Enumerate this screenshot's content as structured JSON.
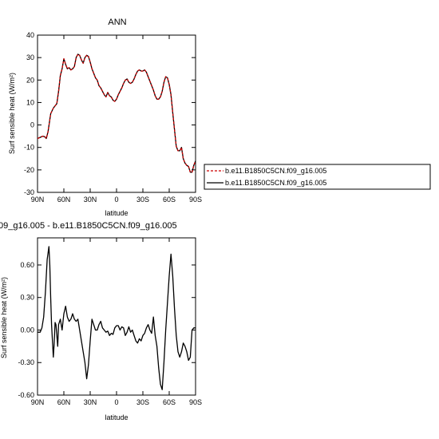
{
  "chart_data": [
    {
      "type": "line",
      "title": "ANN",
      "xlabel": "latitude",
      "ylabel": "Surf sensible heat (W/m²)",
      "xlim": [
        90,
        -90
      ],
      "ylim": [
        -30,
        40
      ],
      "x_ticks": [
        90,
        60,
        30,
        0,
        -30,
        -60,
        -90
      ],
      "x_tick_labels": [
        "90N",
        "60N",
        "30N",
        "0",
        "30S",
        "60S",
        "90S"
      ],
      "y_ticks": [
        -30,
        -20,
        -10,
        0,
        10,
        20,
        30,
        40
      ],
      "y_tick_labels": [
        "-30",
        "-20",
        "-10",
        "0",
        "10",
        "20",
        "30",
        "40"
      ],
      "x": [
        90,
        87,
        84,
        82,
        80,
        78,
        75,
        72,
        70,
        68,
        66,
        64,
        62,
        60,
        58,
        56,
        54,
        52,
        50,
        48,
        46,
        44,
        42,
        40,
        38,
        36,
        34,
        32,
        30,
        28,
        26,
        24,
        22,
        20,
        18,
        16,
        14,
        12,
        10,
        8,
        6,
        4,
        2,
        0,
        -2,
        -4,
        -6,
        -8,
        -10,
        -12,
        -14,
        -16,
        -18,
        -20,
        -22,
        -24,
        -26,
        -28,
        -30,
        -32,
        -34,
        -36,
        -38,
        -40,
        -42,
        -44,
        -46,
        -48,
        -50,
        -52,
        -54,
        -56,
        -58,
        -60,
        -62,
        -64,
        -66,
        -68,
        -70,
        -72,
        -74,
        -76,
        -78,
        -80,
        -82,
        -84,
        -86,
        -88,
        -90
      ],
      "series": [
        {
          "name": "b.e11.B1850C5CN.f09_g16.005",
          "color": "#cc0000",
          "dash": "dashed",
          "values": [
            -6,
            -5.5,
            -5,
            -5,
            -6,
            -3,
            5,
            7.5,
            8.5,
            9.5,
            15,
            22,
            25,
            29.5,
            27,
            25,
            25.5,
            24.5,
            25,
            26,
            30,
            31.5,
            31,
            29,
            27.5,
            30,
            31,
            30.5,
            28,
            25,
            23,
            21,
            20,
            17.5,
            16.5,
            15,
            13.5,
            12.5,
            14.5,
            13,
            12.5,
            11,
            10.5,
            11.5,
            13.5,
            15,
            16.5,
            18.5,
            20,
            20.5,
            19,
            18.5,
            19,
            20.5,
            22.5,
            24,
            24.5,
            24,
            24,
            24.5,
            23.5,
            21.5,
            19.5,
            17.5,
            15.5,
            13,
            11.5,
            11.5,
            12.5,
            15,
            19,
            21.5,
            21,
            18,
            13.5,
            5.5,
            -2,
            -9.5,
            -11.5,
            -11.5,
            -10,
            -15,
            -17,
            -18,
            -18.5,
            -21,
            -21,
            -18,
            -16
          ]
        },
        {
          "name": "b.e11.B1850C5CN.f09_g16.005",
          "color": "#000000",
          "dash": "solid",
          "values": [
            -6,
            -5.5,
            -5,
            -5.2,
            -6,
            -3,
            5,
            7.5,
            8.5,
            9.5,
            15,
            22,
            25,
            29.5,
            27,
            25,
            25.5,
            24.5,
            25,
            26,
            30,
            31.5,
            31,
            29,
            27.5,
            30,
            31,
            30.5,
            28,
            25,
            23,
            21,
            20,
            17.5,
            16.5,
            15,
            13.5,
            12.5,
            14.5,
            13,
            12.5,
            11,
            10.5,
            11.5,
            13.5,
            15,
            16.5,
            18.5,
            20,
            20.5,
            19,
            18.5,
            19,
            20.5,
            22.5,
            24,
            24.5,
            24,
            24,
            24.5,
            23.5,
            21.5,
            19.5,
            17.5,
            15.5,
            13,
            11.5,
            11.5,
            12.5,
            15,
            19,
            21.5,
            21,
            18,
            13.5,
            5.5,
            -2,
            -9.5,
            -11.5,
            -11.5,
            -10,
            -15,
            -17,
            -18,
            -18.5,
            -21,
            -21,
            -18,
            -16
          ]
        }
      ],
      "legend": "right",
      "grid": false
    },
    {
      "type": "line",
      "title": "09_g16.005 - b.e11.B1850C5CN.f09_g16.005",
      "xlabel": "latitude",
      "ylabel": "Surf sensible heat (W/m²)",
      "xlim": [
        90,
        -90
      ],
      "ylim": [
        -0.6,
        0.85
      ],
      "x_ticks": [
        90,
        60,
        30,
        0,
        -30,
        -60,
        -90
      ],
      "x_tick_labels": [
        "90N",
        "60N",
        "30N",
        "0",
        "30S",
        "60S",
        "90S"
      ],
      "y_ticks": [
        -0.6,
        -0.3,
        0,
        0.3,
        0.6
      ],
      "y_tick_labels": [
        "-0.60",
        "-0.30",
        "0.00",
        "0.30",
        "0.60"
      ],
      "x": [
        90,
        87,
        85,
        83,
        81,
        79,
        77,
        76,
        75,
        74,
        73,
        72,
        71,
        70,
        69,
        68,
        67,
        66,
        64,
        62,
        60,
        58,
        56,
        54,
        52,
        50,
        48,
        46,
        44,
        42,
        40,
        38,
        36,
        34,
        32,
        30,
        28,
        26,
        24,
        22,
        20,
        18,
        16,
        14,
        12,
        10,
        8,
        6,
        4,
        2,
        0,
        -2,
        -4,
        -6,
        -8,
        -10,
        -12,
        -14,
        -16,
        -18,
        -20,
        -22,
        -24,
        -26,
        -28,
        -30,
        -32,
        -34,
        -36,
        -38,
        -40,
        -42,
        -44,
        -46,
        -48,
        -50,
        -52,
        -54,
        -56,
        -58,
        -60,
        -62,
        -64,
        -66,
        -68,
        -70,
        -72,
        -74,
        -76,
        -78,
        -80,
        -82,
        -84,
        -86,
        -88,
        -90
      ],
      "series": [
        {
          "name": "",
          "color": "#000000",
          "dash": "solid",
          "values": [
            -0.02,
            -0.02,
            0.02,
            0.12,
            0.35,
            0.65,
            0.77,
            0.6,
            0.3,
            0.05,
            -0.1,
            -0.25,
            -0.12,
            0.07,
            0.05,
            -0.05,
            -0.15,
            0.05,
            0.1,
            0.0,
            0.15,
            0.22,
            0.12,
            0.08,
            0.1,
            0.15,
            0.1,
            0.08,
            0.1,
            0.0,
            -0.1,
            -0.2,
            -0.3,
            -0.45,
            -0.32,
            -0.1,
            0.1,
            0.05,
            0.0,
            0.0,
            0.05,
            0.08,
            0.02,
            0.0,
            -0.02,
            -0.01,
            -0.05,
            -0.03,
            -0.04,
            0.02,
            0.04,
            0.04,
            0.0,
            0.03,
            0.02,
            -0.05,
            -0.02,
            0.03,
            -0.02,
            0.0,
            -0.05,
            -0.1,
            -0.12,
            -0.08,
            -0.1,
            -0.05,
            -0.03,
            0.02,
            0.05,
            0.0,
            -0.03,
            0.12,
            -0.05,
            -0.15,
            -0.35,
            -0.5,
            -0.55,
            -0.3,
            0.0,
            0.25,
            0.5,
            0.7,
            0.5,
            0.2,
            -0.05,
            -0.2,
            -0.25,
            -0.2,
            -0.12,
            -0.15,
            -0.2,
            -0.28,
            -0.25,
            0.0,
            0.02,
            0.02
          ]
        }
      ],
      "legend": "none",
      "grid": false
    }
  ]
}
